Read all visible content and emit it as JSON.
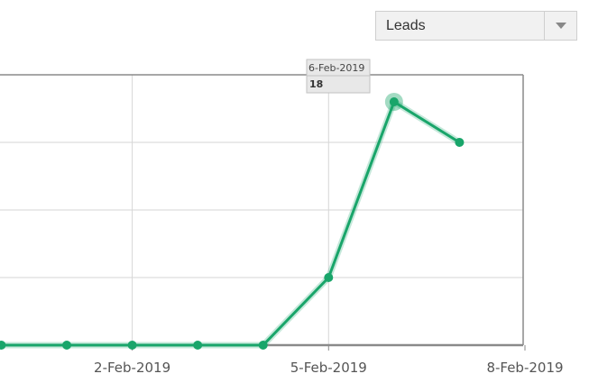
{
  "metric_select": {
    "selected": "Leads"
  },
  "colors": {
    "line": "#19a56a",
    "grid": "#d6d6d6",
    "frame": "#8a8a8a",
    "tooltip_bg": "#e8e8e8",
    "tooltip_border": "#c2c2c2"
  },
  "chart_data": {
    "type": "line",
    "title": "",
    "xlabel": "",
    "ylabel": "",
    "x_tick_labels": [
      "2-Feb-2019",
      "5-Feb-2019",
      "8-Feb-2019"
    ],
    "x_tick_days": [
      2,
      5,
      8
    ],
    "xlim_days": [
      -0.02,
      8.0
    ],
    "ylim": [
      0,
      20
    ],
    "grid": true,
    "series": [
      {
        "x": [
          "0-Feb-2019",
          "1-Feb-2019",
          "2-Feb-2019",
          "3-Feb-2019",
          "4-Feb-2019",
          "5-Feb-2019",
          "6-Feb-2019",
          "7-Feb-2019"
        ],
        "x_days": [
          0,
          1,
          2,
          3,
          4,
          5,
          6,
          7
        ],
        "values": [
          0,
          0,
          0,
          0,
          0,
          5,
          18,
          15
        ]
      }
    ],
    "tooltip": {
      "date": "6-Feb-2019",
      "value": "18",
      "point_index": 6
    }
  }
}
